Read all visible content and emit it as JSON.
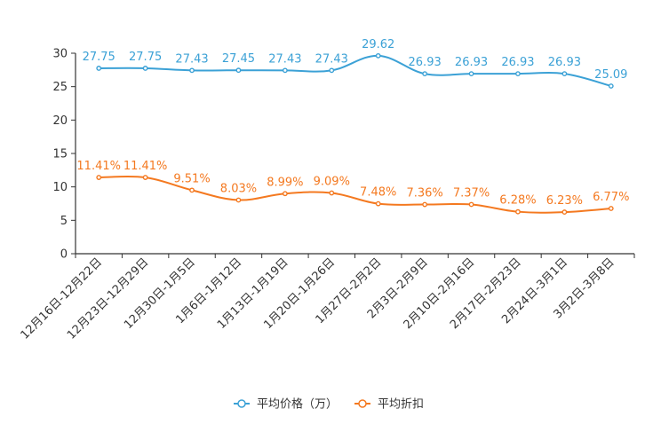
{
  "chart_data": {
    "type": "line",
    "title": "",
    "xlabel": "",
    "ylabel": "",
    "ylim": [
      0,
      30
    ],
    "yticks": [
      0,
      5,
      10,
      15,
      20,
      25,
      30
    ],
    "categories": [
      "12月16日-12月22日",
      "12月23日-12月29日",
      "12月30日-1月5日",
      "1月6日-1月12日",
      "1月13日-1月19日",
      "1月20日-1月26日",
      "1月27日-2月2日",
      "2月3日-2月9日",
      "2月10日-2月16日",
      "2月17日-2月23日",
      "2月24日-3月1日",
      "3月2日-3月8日"
    ],
    "series": [
      {
        "name": "平均价格（万）",
        "color": "#3ba1d6",
        "values": [
          27.75,
          27.75,
          27.43,
          27.45,
          27.43,
          27.43,
          29.62,
          26.93,
          26.93,
          26.93,
          26.93,
          25.09
        ],
        "labels": [
          "27.75",
          "27.75",
          "27.43",
          "27.45",
          "27.43",
          "27.43",
          "29.62",
          "26.93",
          "26.93",
          "26.93",
          "26.93",
          "25.09"
        ]
      },
      {
        "name": "平均折扣",
        "color": "#f47920",
        "values": [
          11.41,
          11.41,
          9.51,
          8.03,
          8.99,
          9.09,
          7.48,
          7.36,
          7.37,
          6.28,
          6.23,
          6.77
        ],
        "labels": [
          "11.41%",
          "11.41%",
          "9.51%",
          "8.03%",
          "8.99%",
          "9.09%",
          "7.48%",
          "7.36%",
          "7.37%",
          "6.28%",
          "6.23%",
          "6.77%"
        ]
      }
    ],
    "legend_position": "bottom-center"
  }
}
